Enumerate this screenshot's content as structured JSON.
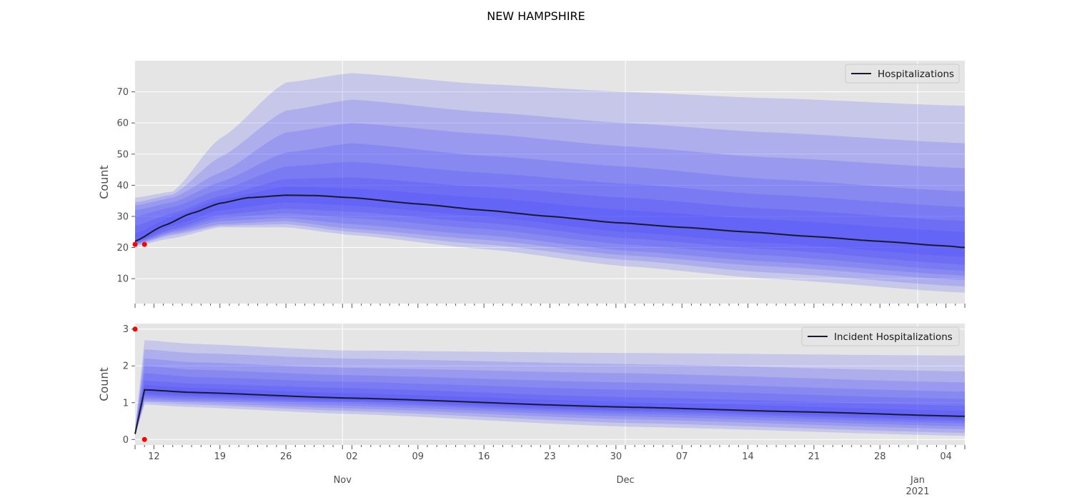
{
  "chart_data": {
    "suptitle": "NEW HAMPSHIRE",
    "bands_color": "#3333ff",
    "median_color": "#1a1a2e",
    "observed_color": "#ff0000",
    "background_color": "#e5e5e5",
    "grid": true,
    "x_range": [
      "2020-10-10",
      "2021-01-06"
    ],
    "x_ticks": {
      "major_dates": [
        "2020-11-01",
        "2020-12-01",
        "2021-01-01"
      ],
      "day_labels": [
        {
          "date": "2020-10-12",
          "label": "12"
        },
        {
          "date": "2020-10-19",
          "label": "19"
        },
        {
          "date": "2020-10-26",
          "label": "26"
        },
        {
          "date": "2020-11-02",
          "label": "02"
        },
        {
          "date": "2020-11-09",
          "label": "09"
        },
        {
          "date": "2020-11-16",
          "label": "16"
        },
        {
          "date": "2020-11-23",
          "label": "23"
        },
        {
          "date": "2020-11-30",
          "label": "30"
        },
        {
          "date": "2020-12-07",
          "label": "07"
        },
        {
          "date": "2020-12-14",
          "label": "14"
        },
        {
          "date": "2020-12-21",
          "label": "21"
        },
        {
          "date": "2020-12-28",
          "label": "28"
        },
        {
          "date": "2021-01-04",
          "label": "04"
        }
      ],
      "month_labels": [
        {
          "date": "2020-11-01",
          "label": "Nov",
          "sub": ""
        },
        {
          "date": "2020-12-01",
          "label": "Dec",
          "sub": ""
        },
        {
          "date": "2021-01-01",
          "label": "Jan",
          "sub": "2021"
        }
      ]
    },
    "panels": [
      {
        "type": "area",
        "ylabel": "Count",
        "ylim": [
          2,
          80
        ],
        "yticks": [
          10,
          20,
          30,
          40,
          50,
          60,
          70
        ],
        "legend": {
          "label": "Hospitalizations",
          "position": "upper right"
        },
        "median": [
          [
            "2020-10-10",
            22
          ],
          [
            "2020-10-13",
            27
          ],
          [
            "2020-10-16",
            31
          ],
          [
            "2020-10-19",
            34.2
          ],
          [
            "2020-10-22",
            36
          ],
          [
            "2020-10-26",
            36.8
          ],
          [
            "2020-10-29",
            36.7
          ],
          [
            "2020-11-02",
            36
          ],
          [
            "2020-11-09",
            34
          ],
          [
            "2020-11-16",
            32
          ],
          [
            "2020-11-23",
            30
          ],
          [
            "2020-11-30",
            28
          ],
          [
            "2020-12-07",
            26.5
          ],
          [
            "2020-12-14",
            25
          ],
          [
            "2020-12-21",
            23.5
          ],
          [
            "2020-12-28",
            22
          ],
          [
            "2021-01-04",
            20.5
          ],
          [
            "2021-01-06",
            20
          ]
        ],
        "quantile_bands": [
          {
            "x": [
              "2020-10-10",
              "2020-10-14",
              "2020-10-19",
              "2020-10-26",
              "2020-11-02",
              "2020-11-16",
              "2020-12-01",
              "2020-12-16",
              "2021-01-06"
            ],
            "lower": [
              20.5,
              23,
              26.5,
              26.5,
              24,
              19.5,
              14,
              10,
              5.5
            ],
            "upper": [
              36,
              38,
              55,
              73,
              76,
              72.5,
              70,
              68,
              65.5
            ]
          },
          {
            "x": [
              "2020-10-10",
              "2020-10-14",
              "2020-10-19",
              "2020-10-26",
              "2020-11-02",
              "2020-11-16",
              "2020-12-01",
              "2020-12-16",
              "2021-01-06"
            ],
            "lower": [
              20.8,
              24,
              27,
              27.5,
              25,
              21,
              16,
              12,
              7.5
            ],
            "upper": [
              34.5,
              37,
              49,
              64,
              67.5,
              63.5,
              60,
              57,
              53.5
            ]
          },
          {
            "x": [
              "2020-10-10",
              "2020-10-14",
              "2020-10-19",
              "2020-10-26",
              "2020-11-02",
              "2020-11-16",
              "2020-12-01",
              "2020-12-16",
              "2021-01-06"
            ],
            "lower": [
              21,
              24.5,
              27.5,
              28.5,
              26,
              22.5,
              17.5,
              14,
              9.5
            ],
            "upper": [
              33.5,
              36,
              44,
              57,
              60,
              56.5,
              52.5,
              49,
              45.5
            ]
          },
          {
            "x": [
              "2020-10-10",
              "2020-10-14",
              "2020-10-19",
              "2020-10-26",
              "2020-11-02",
              "2020-11-16",
              "2020-12-01",
              "2020-12-16",
              "2021-01-06"
            ],
            "lower": [
              21.2,
              25,
              28.5,
              29.5,
              27.5,
              24,
              19,
              15.5,
              11
            ],
            "upper": [
              32,
              34.5,
              41,
              50.5,
              53.5,
              49.5,
              46,
              42,
              38
            ]
          },
          {
            "x": [
              "2020-10-10",
              "2020-10-14",
              "2020-10-19",
              "2020-10-26",
              "2020-11-02",
              "2020-11-16",
              "2020-12-01",
              "2020-12-16",
              "2021-01-06"
            ],
            "lower": [
              21.4,
              25.5,
              29.5,
              31,
              29.5,
              26,
              21,
              17.5,
              12.5
            ],
            "upper": [
              30,
              33,
              38.5,
              46,
              47.5,
              44,
              40.5,
              37,
              33
            ]
          },
          {
            "x": [
              "2020-10-10",
              "2020-10-14",
              "2020-10-19",
              "2020-10-26",
              "2020-11-02",
              "2020-11-16",
              "2020-12-01",
              "2020-12-16",
              "2021-01-06"
            ],
            "lower": [
              21.6,
              26,
              30.5,
              32.5,
              31.5,
              28,
              23,
              19.5,
              14.5
            ],
            "upper": [
              27,
              31,
              36.5,
              42,
              42.5,
              39.5,
              36,
              32.5,
              28.5
            ]
          },
          {
            "x": [
              "2020-10-10",
              "2020-10-14",
              "2020-10-19",
              "2020-10-26",
              "2020-11-02",
              "2020-11-16",
              "2020-12-01",
              "2020-12-16",
              "2021-01-06"
            ],
            "lower": [
              21.8,
              27,
              32,
              34.5,
              33.5,
              30,
              25,
              21.5,
              17
            ],
            "upper": [
              24.5,
              30,
              35.5,
              39.5,
              39,
              36,
              32,
              29,
              25
            ]
          }
        ],
        "observed": [
          [
            "2020-10-10",
            21
          ],
          [
            "2020-10-11",
            21
          ]
        ]
      },
      {
        "type": "area",
        "ylabel": "Count",
        "ylim": [
          -0.15,
          3.15
        ],
        "yticks": [
          0,
          1,
          2,
          3
        ],
        "legend": {
          "label": "Incident Hospitalizations",
          "position": "upper right"
        },
        "median": [
          [
            "2020-10-10",
            0.15
          ],
          [
            "2020-10-11",
            1.35
          ],
          [
            "2020-10-16",
            1.28
          ],
          [
            "2020-11-01",
            1.13
          ],
          [
            "2020-12-01",
            0.88
          ],
          [
            "2020-12-20",
            0.75
          ],
          [
            "2021-01-06",
            0.63
          ]
        ],
        "quantile_bands": [
          {
            "x": [
              "2020-10-10",
              "2020-10-11",
              "2020-10-16",
              "2020-11-01",
              "2020-12-01",
              "2021-01-06"
            ],
            "lower": [
              0.1,
              0.95,
              0.88,
              0.7,
              0.35,
              0.1
            ],
            "upper": [
              0.3,
              2.7,
              2.6,
              2.42,
              2.35,
              2.28
            ]
          },
          {
            "x": [
              "2020-10-10",
              "2020-10-11",
              "2020-10-16",
              "2020-11-01",
              "2020-12-01",
              "2021-01-06"
            ],
            "lower": [
              0.11,
              1.0,
              0.95,
              0.78,
              0.45,
              0.18
            ],
            "upper": [
              0.27,
              2.45,
              2.35,
              2.2,
              2.05,
              1.85
            ]
          },
          {
            "x": [
              "2020-10-10",
              "2020-10-11",
              "2020-10-16",
              "2020-11-01",
              "2020-12-01",
              "2021-01-06"
            ],
            "lower": [
              0.12,
              1.05,
              1.0,
              0.85,
              0.55,
              0.28
            ],
            "upper": [
              0.24,
              2.2,
              2.1,
              1.95,
              1.8,
              1.55
            ]
          },
          {
            "x": [
              "2020-10-10",
              "2020-10-11",
              "2020-10-16",
              "2020-11-01",
              "2020-12-01",
              "2021-01-06"
            ],
            "lower": [
              0.13,
              1.1,
              1.05,
              0.92,
              0.63,
              0.36
            ],
            "upper": [
              0.22,
              2.0,
              1.9,
              1.75,
              1.55,
              1.3
            ]
          },
          {
            "x": [
              "2020-10-10",
              "2020-10-11",
              "2020-10-16",
              "2020-11-01",
              "2020-12-01",
              "2021-01-06"
            ],
            "lower": [
              0.13,
              1.15,
              1.1,
              0.98,
              0.7,
              0.44
            ],
            "upper": [
              0.2,
              1.8,
              1.7,
              1.57,
              1.35,
              1.1
            ]
          },
          {
            "x": [
              "2020-10-10",
              "2020-10-11",
              "2020-10-16",
              "2020-11-01",
              "2020-12-01",
              "2021-01-06"
            ],
            "lower": [
              0.14,
              1.2,
              1.15,
              1.02,
              0.76,
              0.5
            ],
            "upper": [
              0.18,
              1.6,
              1.52,
              1.4,
              1.15,
              0.92
            ]
          },
          {
            "x": [
              "2020-10-10",
              "2020-10-11",
              "2020-10-16",
              "2020-11-01",
              "2020-12-01",
              "2021-01-06"
            ],
            "lower": [
              0.14,
              1.25,
              1.2,
              1.06,
              0.8,
              0.55
            ],
            "upper": [
              0.17,
              1.48,
              1.4,
              1.26,
              1.02,
              0.78
            ]
          }
        ],
        "observed": [
          [
            "2020-10-10",
            3
          ],
          [
            "2020-10-11",
            0
          ]
        ]
      }
    ]
  }
}
